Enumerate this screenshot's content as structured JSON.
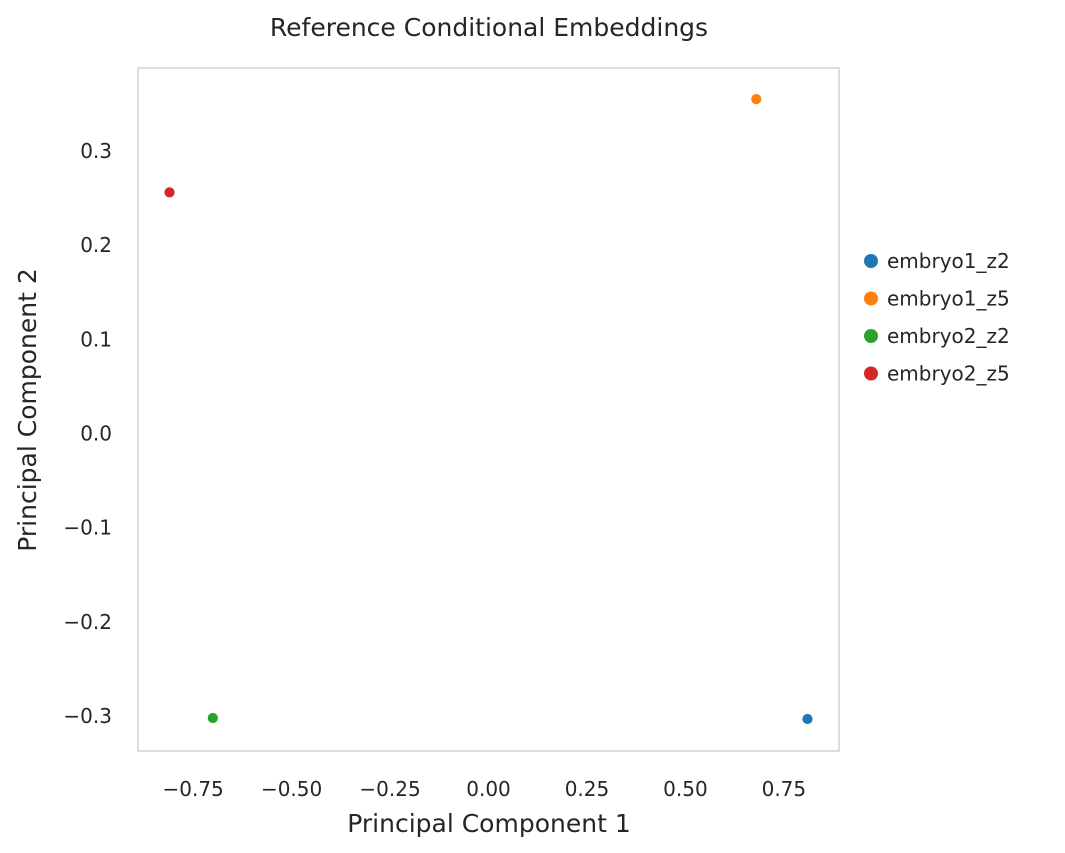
{
  "chart_data": {
    "type": "scatter",
    "title": "Reference Conditional Embeddings",
    "xlabel": "Principal Component 1",
    "ylabel": "Principal Component 2",
    "xlim": [
      -0.89,
      0.89
    ],
    "ylim": [
      -0.337,
      0.388
    ],
    "xticks": [
      -0.75,
      -0.5,
      -0.25,
      0.0,
      0.25,
      0.5,
      0.75
    ],
    "xtick_labels": [
      "−0.75",
      "−0.50",
      "−0.25",
      "0.00",
      "0.25",
      "0.50",
      "0.75"
    ],
    "yticks": [
      0.3,
      0.2,
      0.1,
      0.0,
      -0.1,
      -0.2,
      -0.3
    ],
    "ytick_labels": [
      "0.3",
      "0.2",
      "0.1",
      "0.0",
      "−0.1",
      "−0.2",
      "−0.3"
    ],
    "grid": false,
    "legend_position": "right",
    "series": [
      {
        "name": "embryo1_z2",
        "color": "#1f77b4",
        "x": [
          0.81
        ],
        "y": [
          -0.303
        ]
      },
      {
        "name": "embryo1_z5",
        "color": "#ff7f0e",
        "x": [
          0.68
        ],
        "y": [
          0.355
        ]
      },
      {
        "name": "embryo2_z2",
        "color": "#2ca02c",
        "x": [
          -0.7
        ],
        "y": [
          -0.302
        ]
      },
      {
        "name": "embryo2_z5",
        "color": "#d62728",
        "x": [
          -0.81
        ],
        "y": [
          0.256
        ]
      }
    ]
  }
}
